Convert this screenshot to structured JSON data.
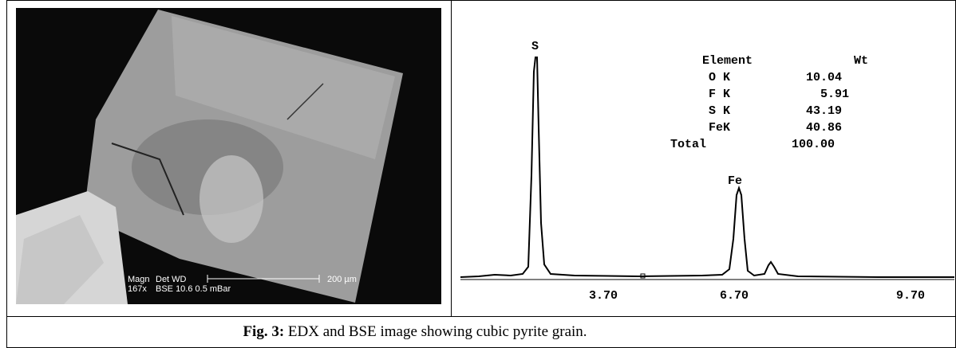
{
  "bse_image": {
    "magn_label": "Magn",
    "magn_value": "167x",
    "det_wd_label": "Det  WD",
    "det_wd_value": "BSE 10.6   0.5 mBar",
    "scale_bar": "200 µm"
  },
  "edx": {
    "peaks": [
      "S",
      "Fe"
    ],
    "x_tick_labels": [
      "3.70",
      "6.70",
      "9.70"
    ],
    "table": {
      "header": [
        "Element",
        "Wt"
      ],
      "rows": [
        [
          "O K",
          "10.04"
        ],
        [
          "F K",
          "5.91"
        ],
        [
          "S K",
          "43.19"
        ],
        [
          "FeK",
          "40.86"
        ],
        [
          "Total",
          "100.00"
        ]
      ]
    }
  },
  "caption": {
    "label": "Fig. 3:",
    "text": "EDX and BSE image showing cubic pyrite grain."
  }
}
